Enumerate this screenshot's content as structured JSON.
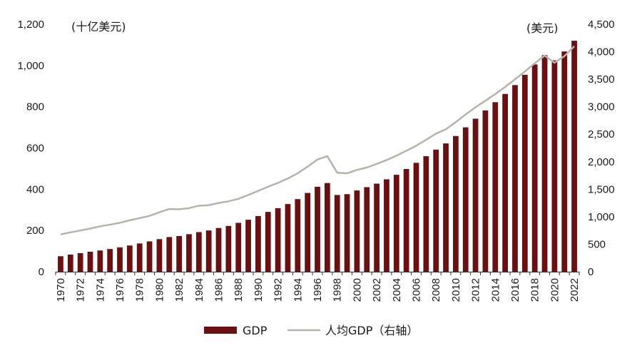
{
  "chart_data": {
    "type": "bar",
    "x": [
      "1970",
      "1971",
      "1972",
      "1973",
      "1974",
      "1975",
      "1976",
      "1977",
      "1978",
      "1979",
      "1980",
      "1981",
      "1982",
      "1983",
      "1984",
      "1985",
      "1986",
      "1987",
      "1988",
      "1989",
      "1990",
      "1991",
      "1992",
      "1993",
      "1994",
      "1995",
      "1996",
      "1997",
      "1998",
      "1999",
      "2000",
      "2001",
      "2002",
      "2003",
      "2004",
      "2005",
      "2006",
      "2007",
      "2008",
      "2009",
      "2010",
      "2011",
      "2012",
      "2013",
      "2014",
      "2015",
      "2016",
      "2017",
      "2018",
      "2019",
      "2020",
      "2021",
      "2022"
    ],
    "x_tick_labels": [
      "1970",
      "1972",
      "1974",
      "1976",
      "1978",
      "1980",
      "1982",
      "1984",
      "1986",
      "1988",
      "1990",
      "1992",
      "1994",
      "1996",
      "1998",
      "2000",
      "2002",
      "2004",
      "2006",
      "2008",
      "2010",
      "2012",
      "2014",
      "2016",
      "2018",
      "2020",
      "2022"
    ],
    "series": [
      {
        "name": "GDP",
        "type": "bar",
        "axis": "left",
        "color": "#6b1010",
        "values": [
          75,
          83,
          90,
          97,
          103,
          110,
          118,
          127,
          137,
          147,
          158,
          168,
          173,
          182,
          192,
          200,
          212,
          222,
          237,
          252,
          270,
          290,
          308,
          328,
          352,
          382,
          412,
          430,
          372,
          376,
          394,
          410,
          427,
          448,
          470,
          498,
          528,
          560,
          592,
          622,
          658,
          700,
          742,
          782,
          822,
          862,
          905,
          955,
          1005,
          1050,
          1025,
          1068,
          1120
        ]
      },
      {
        "name": "人均GDP（右轴）",
        "type": "line",
        "axis": "right",
        "color": "#b4b4ac",
        "values": [
          680,
          715,
          750,
          785,
          825,
          855,
          890,
          935,
          975,
          1015,
          1080,
          1140,
          1135,
          1155,
          1200,
          1210,
          1250,
          1280,
          1325,
          1395,
          1470,
          1545,
          1615,
          1695,
          1790,
          1910,
          2040,
          2100,
          1800,
          1790,
          1850,
          1895,
          1960,
          2030,
          2110,
          2200,
          2290,
          2400,
          2510,
          2590,
          2720,
          2860,
          2990,
          3110,
          3230,
          3360,
          3500,
          3640,
          3790,
          3930,
          3800,
          3920,
          4100
        ]
      }
    ],
    "left_axis": {
      "unit_label": "(十亿美元)",
      "ylim": [
        0,
        1200
      ],
      "ticks": [
        0,
        200,
        400,
        600,
        800,
        1000,
        1200
      ],
      "tick_labels": [
        "0",
        "200",
        "400",
        "600",
        "800",
        "1,000",
        "1,200"
      ]
    },
    "right_axis": {
      "unit_label": "(美元)",
      "ylim": [
        0,
        4500
      ],
      "ticks": [
        0,
        500,
        1000,
        1500,
        2000,
        2500,
        3000,
        3500,
        4000,
        4500
      ],
      "tick_labels": [
        "0",
        "500",
        "1,000",
        "1,500",
        "2,000",
        "2,500",
        "3,000",
        "3,500",
        "4,000",
        "4,500"
      ]
    },
    "legend": {
      "position": "bottom-center",
      "entries": [
        "GDP",
        "人均GDP（右轴）"
      ]
    },
    "grid": false
  }
}
